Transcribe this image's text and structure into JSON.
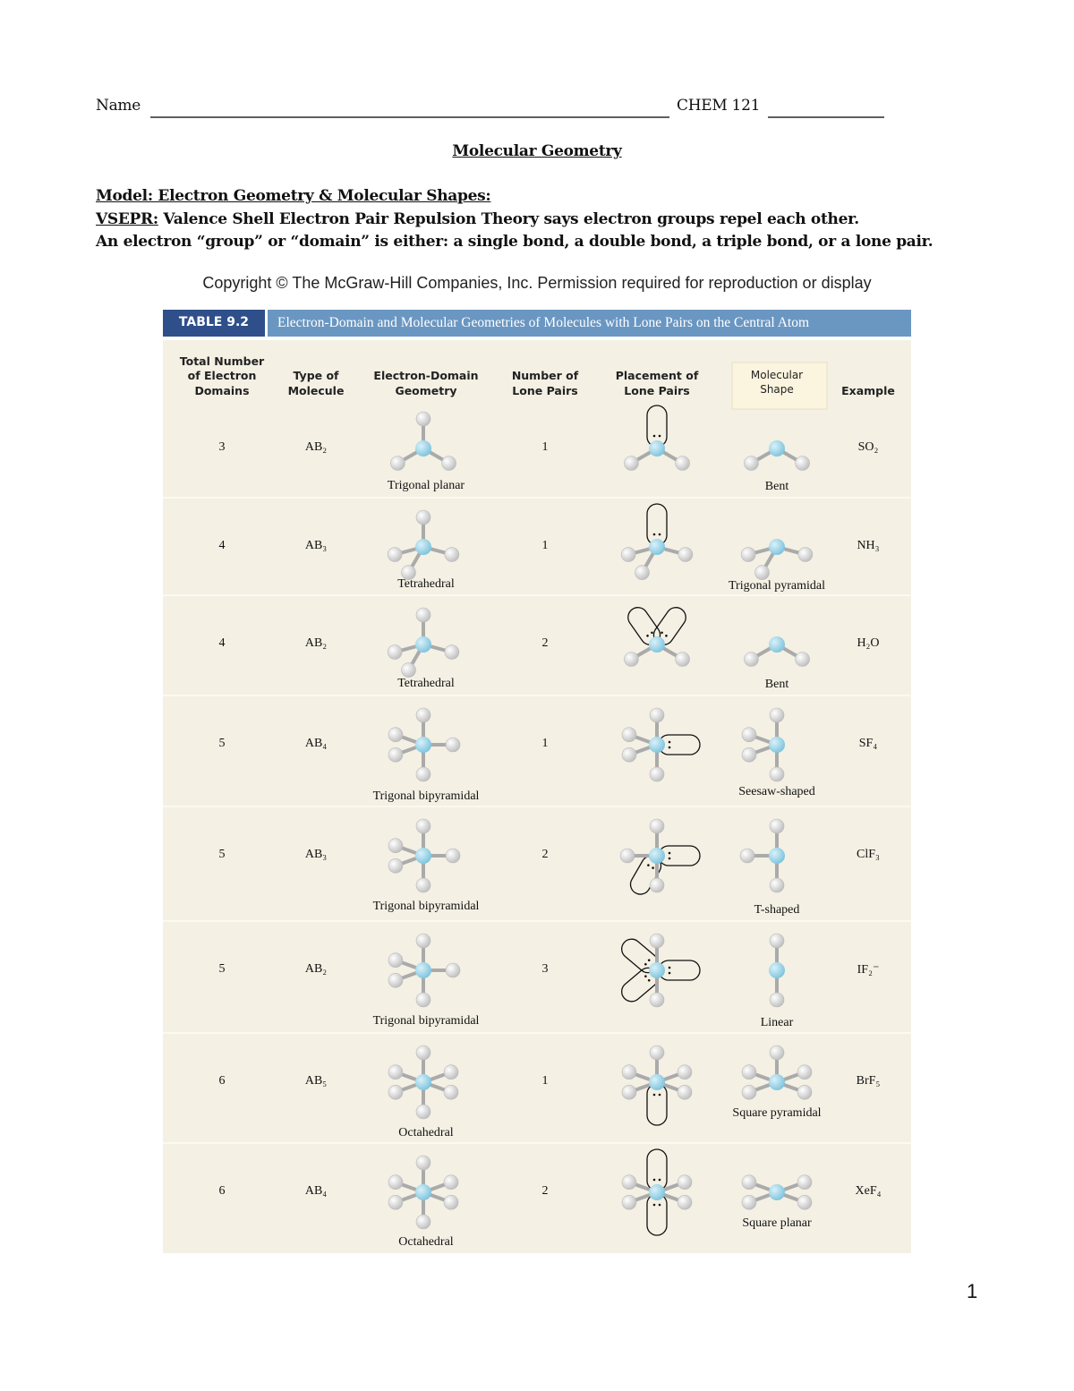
{
  "header": {
    "name_label": "Name",
    "course_label": "CHEM 121"
  },
  "title": "Molecular Geometry",
  "model": {
    "heading": "Model: Electron Geometry & Molecular Shapes:",
    "vsepr_term": "VSEPR:",
    "vsepr_text": " Valence Shell Electron Pair Repulsion Theory says electron groups repel each other.",
    "domain_text": "An electron “group” or “domain” is either: a single bond, a double bond, a triple bond, or a lone pair."
  },
  "copyright": "Copyright © The McGraw-Hill Companies, Inc. Permission required for reproduction or display",
  "table": {
    "label": "TABLE 9.2",
    "title": "Electron-Domain and Molecular Geometries of Molecules with Lone Pairs on the Central Atom",
    "columns": [
      "Total Number\nof Electron\nDomains",
      "Type of\nMolecule",
      "Electron-Domain\nGeometry",
      "Number of\nLone Pairs",
      "Placement of\nLone Pairs",
      "Molecular\nShape",
      "Example"
    ],
    "rows": [
      [
        "3",
        "AB₂",
        "Trigonal planar",
        "1",
        "Bent",
        "SO₂"
      ],
      [
        "4",
        "AB₃",
        "Tetrahedral",
        "1",
        "Trigonal pyramidal",
        "NH₃"
      ],
      [
        "4",
        "AB₂",
        "Tetrahedral",
        "2",
        "Bent",
        "H₂O"
      ],
      [
        "5",
        "AB₄",
        "Trigonal bipyramidal",
        "1",
        "Seesaw-shaped",
        "SF₄"
      ],
      [
        "5",
        "AB₃",
        "Trigonal bipyramidal",
        "2",
        "T-shaped",
        "ClF₃"
      ],
      [
        "5",
        "AB₂",
        "Trigonal bipyramidal",
        "3",
        "Linear",
        "IF₂⁻"
      ],
      [
        "6",
        "AB₅",
        "Octahedral",
        "1",
        "Square pyramidal",
        "BrF₅"
      ],
      [
        "6",
        "AB₄",
        "Octahedral",
        "2",
        "Square planar",
        "XeF₄"
      ]
    ]
  },
  "page_number": "1"
}
